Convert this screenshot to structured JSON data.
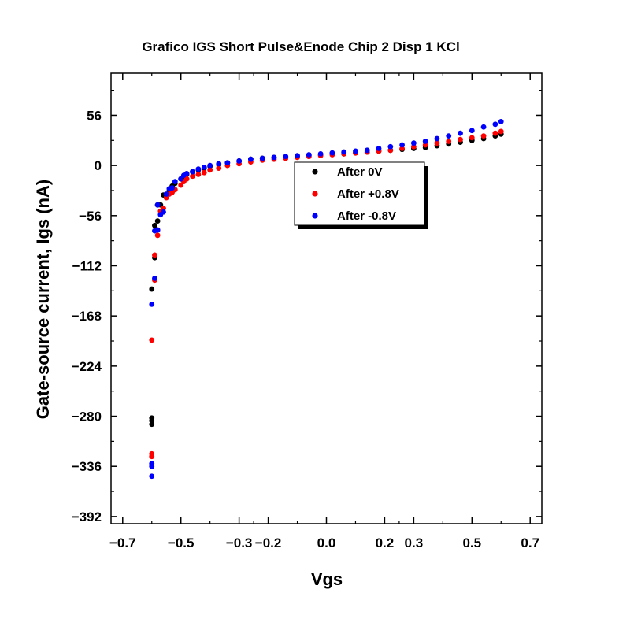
{
  "chart_data": {
    "type": "scatter",
    "title": "Grafico IGS Short Pulse&Enode Chip 2 Disp 1 KCl",
    "xlabel": "Vgs",
    "ylabel": "Gate-source current, Igs (nA)",
    "xlim": [
      -0.74,
      0.74
    ],
    "ylim": [
      -400,
      103
    ],
    "xticks": [
      -0.7,
      -0.5,
      -0.3,
      -0.2,
      0.0,
      0.2,
      0.3,
      0.5,
      0.7
    ],
    "xtick_labels": [
      "−0.7",
      "−0.5",
      "−0.3",
      "−0.2",
      "0.0",
      "0.2",
      "0.3",
      "0.5",
      "0.7"
    ],
    "yticks": [
      56,
      0,
      -56,
      -112,
      -168,
      -224,
      -280,
      -336,
      -392
    ],
    "ytick_labels": [
      "56",
      "0",
      "−56",
      "−112",
      "−168",
      "−224",
      "−280",
      "−336",
      "−392"
    ],
    "grid": false,
    "legend_position": "upper-center",
    "series": [
      {
        "name": "After 0V",
        "color": "#000000",
        "x": [
          -0.6,
          -0.6,
          -0.6,
          -0.6,
          -0.59,
          -0.59,
          -0.58,
          -0.58,
          -0.57,
          -0.56,
          -0.55,
          -0.54,
          -0.53,
          -0.52,
          -0.5,
          -0.49,
          -0.48,
          -0.46,
          -0.44,
          -0.42,
          -0.4,
          -0.37,
          -0.34,
          -0.3,
          -0.26,
          -0.22,
          -0.18,
          -0.14,
          -0.1,
          -0.06,
          -0.02,
          0.02,
          0.06,
          0.1,
          0.14,
          0.18,
          0.22,
          0.26,
          0.3,
          0.34,
          0.38,
          0.42,
          0.46,
          0.5,
          0.54,
          0.58,
          0.6
        ],
        "y": [
          -289,
          -285,
          -282,
          -138,
          -103,
          -67,
          -62,
          -44,
          -44,
          -33,
          -33,
          -28,
          -23,
          -20,
          -15,
          -13,
          -10,
          -7,
          -5,
          -3,
          -1,
          1,
          3,
          5,
          7,
          8,
          9,
          9,
          10,
          11,
          12,
          13,
          13,
          14,
          15,
          16,
          17,
          18,
          19,
          20,
          22,
          24,
          26,
          28,
          30,
          33,
          35
        ]
      },
      {
        "name": "After +0.8V",
        "color": "#ff0000",
        "x": [
          -0.6,
          -0.6,
          -0.6,
          -0.59,
          -0.59,
          -0.58,
          -0.58,
          -0.57,
          -0.56,
          -0.55,
          -0.54,
          -0.53,
          -0.52,
          -0.5,
          -0.49,
          -0.48,
          -0.46,
          -0.44,
          -0.42,
          -0.4,
          -0.37,
          -0.34,
          -0.3,
          -0.26,
          -0.22,
          -0.18,
          -0.14,
          -0.1,
          -0.06,
          -0.02,
          0.02,
          0.06,
          0.1,
          0.14,
          0.18,
          0.22,
          0.26,
          0.3,
          0.34,
          0.38,
          0.42,
          0.46,
          0.5,
          0.54,
          0.58,
          0.6
        ],
        "y": [
          -325,
          -322,
          -195,
          -100,
          -128,
          -78,
          -72,
          -51,
          -48,
          -36,
          -32,
          -30,
          -27,
          -22,
          -18,
          -15,
          -12,
          -10,
          -8,
          -5,
          -3,
          0,
          2,
          4,
          6,
          7,
          8,
          9,
          10,
          11,
          12,
          13,
          14,
          15,
          16,
          17,
          19,
          21,
          23,
          25,
          27,
          29,
          31,
          33,
          36,
          38
        ]
      },
      {
        "name": "After -0.8V",
        "color": "#0000ff",
        "x": [
          -0.6,
          -0.6,
          -0.6,
          -0.6,
          -0.59,
          -0.59,
          -0.58,
          -0.58,
          -0.57,
          -0.56,
          -0.55,
          -0.54,
          -0.53,
          -0.52,
          -0.5,
          -0.49,
          -0.48,
          -0.46,
          -0.44,
          -0.42,
          -0.4,
          -0.37,
          -0.34,
          -0.3,
          -0.26,
          -0.22,
          -0.18,
          -0.14,
          -0.1,
          -0.06,
          -0.02,
          0.02,
          0.06,
          0.1,
          0.14,
          0.18,
          0.22,
          0.26,
          0.3,
          0.34,
          0.38,
          0.42,
          0.46,
          0.5,
          0.54,
          0.58,
          0.6
        ],
        "y": [
          -347,
          -336,
          -333,
          -155,
          -126,
          -73,
          -72,
          -44,
          -55,
          -52,
          -32,
          -26,
          -25,
          -18,
          -15,
          -11,
          -9,
          -7,
          -4,
          -2,
          0,
          2,
          3,
          5,
          7,
          8,
          9,
          10,
          11,
          12,
          13,
          14,
          15,
          16,
          17,
          19,
          21,
          23,
          25,
          27,
          30,
          33,
          36,
          39,
          43,
          46,
          49
        ]
      }
    ]
  }
}
